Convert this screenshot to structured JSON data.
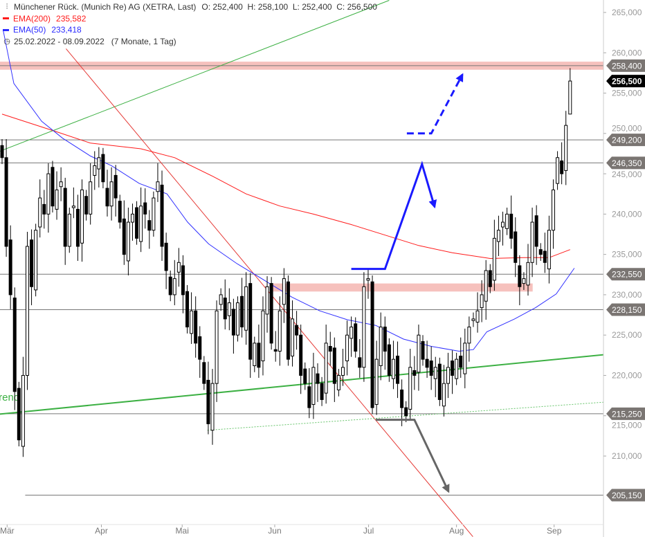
{
  "header": {
    "title": "Münchener Rück. (Munich Re) AG (XETRA, Last)",
    "ohlc": "O: 252,400  H: 258,100  L: 252,400  C: 256,500",
    "ema200_label": "EMA(200)",
    "ema200_value": "235,582",
    "ema50_label": "EMA(50)",
    "ema50_value": "233,418",
    "range": "25.02.2022 - 08.09.2022",
    "range_info": "(7 Monate, 1 Tag)"
  },
  "colors": {
    "ema200": "#ff1a1a",
    "ema50": "#3030ff",
    "trend": "#3cb043",
    "zone": "#f4b6b2",
    "tag": "#7a7572"
  },
  "chart_data": {
    "type": "candlestick",
    "title": "Münchener Rück. (Munich Re) AG (XETRA, Last)",
    "ylim": [
      199,
      267
    ],
    "yticks": [
      210,
      215,
      220,
      225,
      230,
      235,
      240,
      245,
      250,
      255,
      260,
      265
    ],
    "ytick_labels": [
      "210,000",
      "215,000",
      "220,000",
      "225,000",
      "230,000",
      "235,000",
      "240,000",
      "245,000",
      "250,000",
      "255,000",
      "260,000",
      "265,000"
    ],
    "months": [
      {
        "label": "Mär",
        "index": 1.2
      },
      {
        "label": "Apr",
        "index": 23.6
      },
      {
        "label": "Mai",
        "index": 42.8
      },
      {
        "label": "Jun",
        "index": 64.8
      },
      {
        "label": "Jul",
        "index": 87.1
      },
      {
        "label": "Aug",
        "index": 108
      },
      {
        "label": "Sep",
        "index": 131.2
      }
    ],
    "closes": [
      247,
      236,
      230,
      218,
      212,
      220,
      236,
      231,
      238,
      242,
      240,
      245,
      241,
      243,
      244,
      236,
      240,
      241,
      236,
      243,
      240,
      244,
      246,
      247,
      244,
      241,
      244,
      242,
      239,
      235,
      239,
      240,
      237,
      241,
      240,
      238,
      242,
      244,
      236,
      233,
      230,
      232,
      234,
      230,
      226,
      228,
      224,
      222,
      219,
      214,
      219,
      228,
      230,
      227,
      229,
      225,
      229,
      226,
      231,
      222,
      224,
      221,
      228,
      231,
      224,
      223,
      228,
      232,
      222,
      227,
      225,
      220,
      219,
      216,
      221,
      219,
      217,
      224,
      223,
      219,
      220,
      221,
      225,
      226,
      223,
      221,
      231,
      232,
      216,
      222,
      226,
      223,
      220,
      222,
      219,
      216,
      215,
      221,
      220,
      225,
      222,
      221,
      220,
      221,
      217,
      219,
      221,
      220,
      222,
      221,
      224,
      226,
      227,
      228,
      230,
      233,
      231,
      237,
      238,
      239,
      240,
      237,
      234,
      231,
      232,
      234,
      239,
      236,
      235,
      234,
      238,
      243,
      247,
      245,
      251,
      256.5
    ],
    "last_candle": {
      "open": 252.4,
      "high": 258.1,
      "low": 252.4,
      "close": 256.5
    },
    "ema200": [
      [
        0,
        252.4
      ],
      [
        13,
        250.2
      ],
      [
        21,
        248.8
      ],
      [
        33,
        248.1
      ],
      [
        41,
        247
      ],
      [
        50,
        244.7
      ],
      [
        58,
        242.5
      ],
      [
        66,
        241
      ],
      [
        74,
        240
      ],
      [
        83,
        238.7
      ],
      [
        91,
        237.4
      ],
      [
        99,
        236.1
      ],
      [
        107,
        235.2
      ],
      [
        116,
        234.5
      ],
      [
        124,
        234.6
      ],
      [
        130,
        234.6
      ],
      [
        135,
        235.6
      ]
    ],
    "ema50": [
      [
        0.3,
        262.7
      ],
      [
        2.8,
        256.2
      ],
      [
        9.4,
        251.5
      ],
      [
        14.4,
        249.4
      ],
      [
        21,
        247.2
      ],
      [
        26,
        246
      ],
      [
        32.6,
        243.8
      ],
      [
        39.2,
        242.5
      ],
      [
        44.1,
        239
      ],
      [
        49.1,
        236.3
      ],
      [
        55.7,
        233.9
      ],
      [
        62.3,
        231.8
      ],
      [
        68.9,
        229.7
      ],
      [
        75.5,
        228
      ],
      [
        82.1,
        226.9
      ],
      [
        88.8,
        226.2
      ],
      [
        95.4,
        224.5
      ],
      [
        102,
        223.6
      ],
      [
        108.6,
        223
      ],
      [
        112,
        223.2
      ],
      [
        115.2,
        225.4
      ],
      [
        121.8,
        227
      ],
      [
        126.8,
        228.4
      ],
      [
        131.7,
        230.1
      ],
      [
        136,
        233.3
      ]
    ],
    "levels": [
      {
        "value": 258.4,
        "label": "258,400",
        "start": -1
      },
      {
        "value": 249.2,
        "label": "249,200",
        "start": -1
      },
      {
        "value": 246.35,
        "label": "246,350",
        "start": -1
      },
      {
        "value": 232.55,
        "label": "232,550",
        "start": -1
      },
      {
        "value": 228.15,
        "label": "228,150",
        "start": -1
      },
      {
        "value": 215.25,
        "label": "215,250",
        "start": -1
      },
      {
        "value": 205.15,
        "label": "205,150",
        "start": 5.5
      }
    ],
    "current_price": {
      "value": 256.5,
      "label": "256,500"
    },
    "zones": [
      {
        "from": -1,
        "to": 143.6,
        "low": 257.9,
        "high": 258.9
      },
      {
        "from": 63.6,
        "to": 126.1,
        "low": 230.4,
        "high": 231.4
      }
    ],
    "trendlines": [
      {
        "name": "uptrend-support",
        "points": [
          [
            -0.5,
            215.2
          ],
          [
            143.6,
            222.6
          ]
        ],
        "style": "thick-green"
      },
      {
        "name": "upper-green-line",
        "points": [
          [
            -0.5,
            247.8
          ],
          [
            92,
            266.5
          ]
        ],
        "style": "thin-green"
      },
      {
        "name": "downtrend-line",
        "points": [
          [
            15.2,
            260.5
          ],
          [
            111.9,
            200
          ]
        ],
        "style": "thin-red"
      },
      {
        "name": "dotted-support",
        "points": [
          [
            48.8,
            213.2
          ],
          [
            143.6,
            216.7
          ]
        ],
        "style": "dotted-green"
      }
    ],
    "trend_label": "trend",
    "arrows": [
      {
        "name": "blue-scenario-arrow",
        "points": [
          [
            83,
            233.2
          ],
          [
            91,
            233.2
          ],
          [
            99.8,
            246.2
          ],
          [
            102.8,
            240.9
          ]
        ],
        "style": "solid-blue"
      },
      {
        "name": "blue-breakout-arrow",
        "points": [
          [
            96.2,
            250
          ],
          [
            102,
            250
          ],
          [
            109.4,
            257.3
          ]
        ],
        "style": "dashed-blue"
      },
      {
        "name": "gray-bear-arrow",
        "points": [
          [
            88.8,
            214.5
          ],
          [
            98,
            214.5
          ],
          [
            106.1,
            205.6
          ]
        ],
        "style": "gray"
      }
    ]
  }
}
